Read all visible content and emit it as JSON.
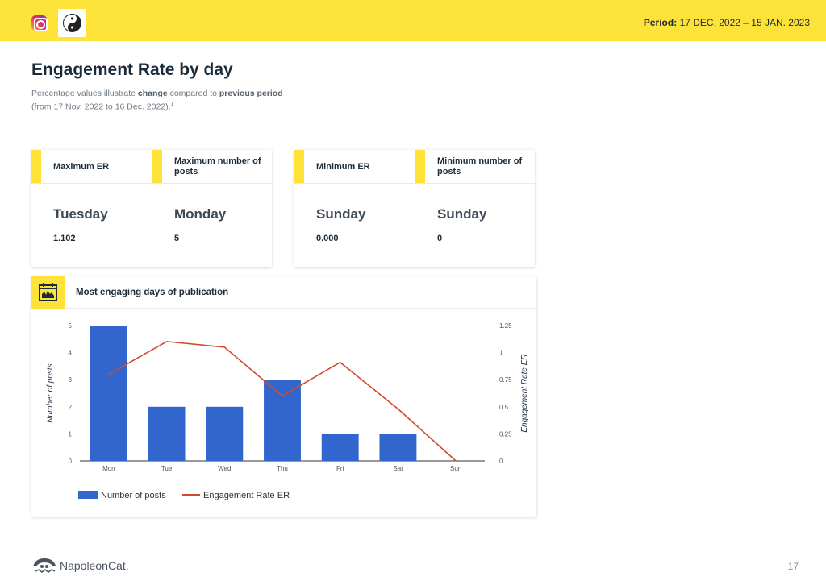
{
  "header": {
    "period_label": "Period:",
    "period_value": "17 DEC. 2022 – 15 JAN. 2023",
    "color": "#fde23a"
  },
  "title": "Engagement Rate by day",
  "subtitle": {
    "part1": "Percentage values illustrate ",
    "change": "change",
    "part2": " compared to ",
    "previous": "previous period",
    "line2": "(from 17 Nov. 2022 to 16 Dec. 2022).",
    "footnote": "1"
  },
  "stats": [
    {
      "label": "Maximum ER",
      "day": "Tuesday",
      "value": "1.102"
    },
    {
      "label": "Maximum number of posts",
      "day": "Monday",
      "value": "5"
    },
    {
      "label": "Minimum ER",
      "day": "Sunday",
      "value": "0.000"
    },
    {
      "label": "Minimum number of posts",
      "day": "Sunday",
      "value": "0"
    }
  ],
  "chart_title": "Most engaging days of publication",
  "chart_data": {
    "type": "bar",
    "categories": [
      "Mon",
      "Tue",
      "Wed",
      "Thu",
      "Fri",
      "Sat",
      "Sun"
    ],
    "series": [
      {
        "name": "Number of posts",
        "type": "bar",
        "axis": "left",
        "color": "#3366cc",
        "values": [
          5,
          2,
          2,
          3,
          1,
          1,
          0
        ]
      },
      {
        "name": "Engagement Rate ER",
        "type": "line",
        "axis": "right",
        "color": "#d24a2e",
        "values": [
          0.8,
          1.102,
          1.05,
          0.6,
          0.91,
          0.48,
          0
        ]
      }
    ],
    "ylabel": "Number of posts",
    "ylim": [
      0,
      5
    ],
    "yticks": [
      "0",
      "1",
      "2",
      "3",
      "4",
      "5"
    ],
    "y2label": "Engagement Rate ER",
    "y2lim": [
      0,
      1.25
    ],
    "y2ticks": [
      "0",
      "0.25",
      "0.5",
      "0.75",
      "1",
      "1.25"
    ],
    "legend": "bottom-left",
    "grid": false
  },
  "footer": {
    "brand": "NapoleonCat.",
    "page": "17"
  }
}
